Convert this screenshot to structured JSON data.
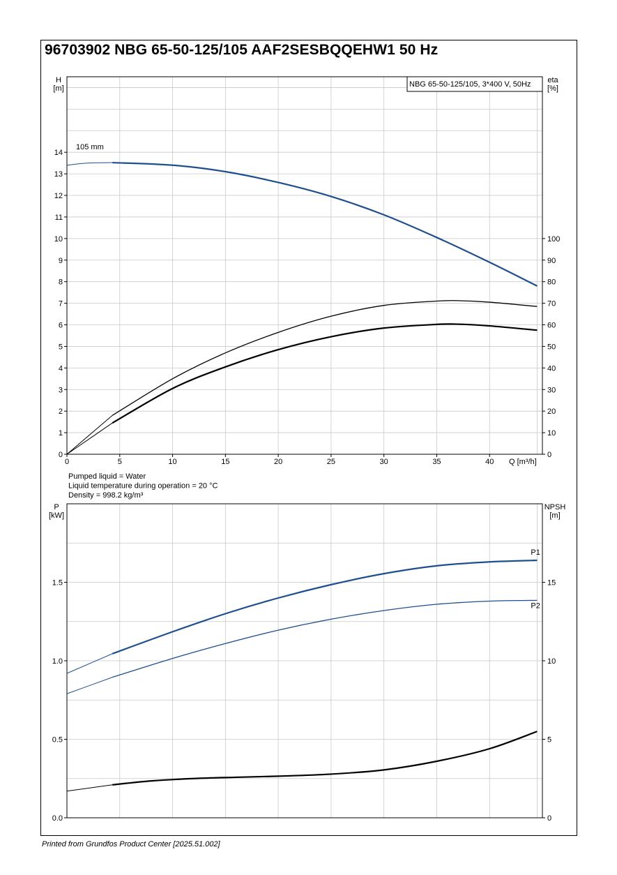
{
  "title": "96703902 NBG 65-50-125/105 AAF2SESBQQEHW1 50 Hz",
  "footer": "Printed from Grundfos Product Center [2025.51.002]",
  "colors": {
    "blue": "#1f4e8c",
    "black": "#000000",
    "grid": "#c8c8c8"
  },
  "liquid_info": [
    "Pumped liquid = Water",
    "Liquid temperature during operation = 20 °C",
    "Density = 998.2 kg/m³"
  ],
  "chart_data": [
    {
      "type": "line",
      "legend_box": "NBG 65-50-125/105, 3*400 V, 50Hz",
      "curve_label": "105 mm",
      "xlabel": "Q [m³/h]",
      "ylabel_left": [
        "H",
        "[m]"
      ],
      "ylabel_right": [
        "eta",
        "[%]"
      ],
      "xlim": [
        0,
        45
      ],
      "ylim": [
        0,
        17.5
      ],
      "y2lim": [
        0,
        175
      ],
      "x_ticks": [
        0,
        5,
        10,
        15,
        20,
        25,
        30,
        35,
        40
      ],
      "y_ticks": [
        0,
        1,
        2,
        3,
        4,
        5,
        6,
        7,
        8,
        9,
        10,
        11,
        12,
        13,
        14
      ],
      "y2_ticks": [
        0,
        10,
        20,
        30,
        40,
        50,
        60,
        70,
        80,
        90,
        100
      ],
      "grid": true,
      "series": [
        {
          "key": "H",
          "axis": "left",
          "color": "#1f4e8c",
          "x": [
            0,
            2,
            4.3,
            10,
            15,
            20,
            25,
            30,
            35,
            40,
            44.5
          ],
          "y": [
            13.4,
            13.5,
            13.52,
            13.4,
            13.1,
            12.6,
            11.95,
            11.1,
            10.05,
            8.9,
            7.8
          ],
          "dashed_until": 4.3,
          "width": 2.2
        },
        {
          "key": "eta_hydraulic",
          "axis": "right",
          "color": "#000000",
          "x": [
            0,
            4.3,
            10,
            15,
            20,
            25,
            30,
            35,
            37,
            40,
            44.5
          ],
          "y": [
            0,
            18,
            35,
            47,
            56.5,
            64,
            69,
            71,
            71.2,
            70.5,
            68.5
          ],
          "dashed_until": 4.3,
          "width": 1.3
        },
        {
          "key": "eta_total",
          "axis": "right",
          "color": "#000000",
          "x": [
            0,
            4.3,
            10,
            15,
            20,
            25,
            30,
            35,
            37,
            40,
            44.5
          ],
          "y": [
            0,
            14.5,
            30.5,
            40.5,
            48.5,
            54.5,
            58.5,
            60.2,
            60.3,
            59.5,
            57.5
          ],
          "dashed_until": 4.3,
          "width": 2.2
        }
      ]
    },
    {
      "type": "line",
      "ylabel_left": [
        "P",
        "[kW]"
      ],
      "ylabel_right": [
        "NPSH",
        "[m]"
      ],
      "xlim": [
        0,
        45
      ],
      "ylim": [
        0,
        2.0
      ],
      "y2lim": [
        0,
        20
      ],
      "y_ticks": [
        0.0,
        0.5,
        1.0,
        1.5
      ],
      "y_tick_labels": [
        "0.0",
        "0.5",
        "1.0",
        "1.5"
      ],
      "y2_ticks": [
        0,
        5,
        10,
        15
      ],
      "grid": true,
      "series": [
        {
          "name": "P1",
          "axis": "left",
          "color": "#1f4e8c",
          "x": [
            0,
            4.3,
            10,
            15,
            20,
            25,
            30,
            35,
            40,
            44.5
          ],
          "y": [
            0.92,
            1.045,
            1.185,
            1.3,
            1.4,
            1.485,
            1.555,
            1.605,
            1.63,
            1.64
          ],
          "dashed_until": 4.3,
          "width": 2.2
        },
        {
          "name": "P2",
          "axis": "left",
          "color": "#1f4e8c",
          "x": [
            0,
            4.3,
            10,
            15,
            20,
            25,
            30,
            35,
            40,
            44.5
          ],
          "y": [
            0.79,
            0.895,
            1.015,
            1.11,
            1.195,
            1.265,
            1.32,
            1.36,
            1.38,
            1.385
          ],
          "dashed_until": 4.3,
          "width": 1.3
        },
        {
          "key": "NPSH",
          "axis": "right",
          "color": "#000000",
          "x": [
            0,
            4.3,
            8,
            12,
            16,
            20,
            25,
            30,
            35,
            40,
            44.5
          ],
          "y": [
            1.7,
            2.1,
            2.35,
            2.5,
            2.58,
            2.65,
            2.78,
            3.05,
            3.6,
            4.4,
            5.5
          ],
          "dashed_until": 4.3,
          "width": 2.2
        }
      ]
    }
  ]
}
